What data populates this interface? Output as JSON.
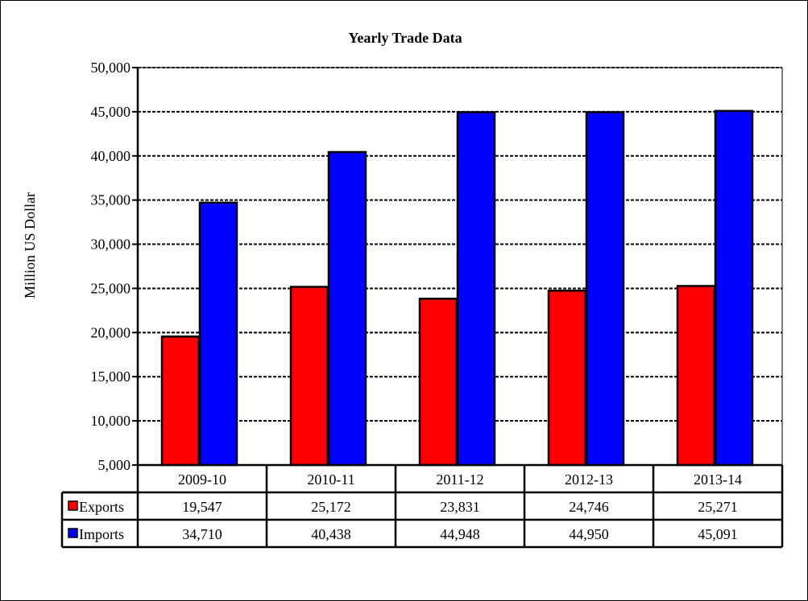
{
  "chart_data": {
    "type": "bar",
    "title": "Yearly Trade Data",
    "xlabel": "",
    "ylabel": "Million US Dollar",
    "ylim": [
      5000,
      50000
    ],
    "ytick_step": 5000,
    "yticks": [
      "5,000",
      "10,000",
      "15,000",
      "20,000",
      "25,000",
      "30,000",
      "35,000",
      "40,000",
      "45,000",
      "50,000"
    ],
    "grid": true,
    "legend": "data table",
    "categories": [
      "2009-10",
      "2010-11",
      "2011-12",
      "2012-13",
      "2013-14"
    ],
    "series": [
      {
        "name": "Exports",
        "color": "#ff0000",
        "values": [
          19547,
          25172,
          23831,
          24746,
          25271
        ],
        "labels": [
          "19,547",
          "25,172",
          "23,831",
          "24,746",
          "25,271"
        ]
      },
      {
        "name": "Imports",
        "color": "#0000ff",
        "values": [
          34710,
          40438,
          44948,
          44950,
          45091
        ],
        "labels": [
          "34,710",
          "40,438",
          "44,948",
          "44,950",
          "45,091"
        ]
      }
    ]
  }
}
